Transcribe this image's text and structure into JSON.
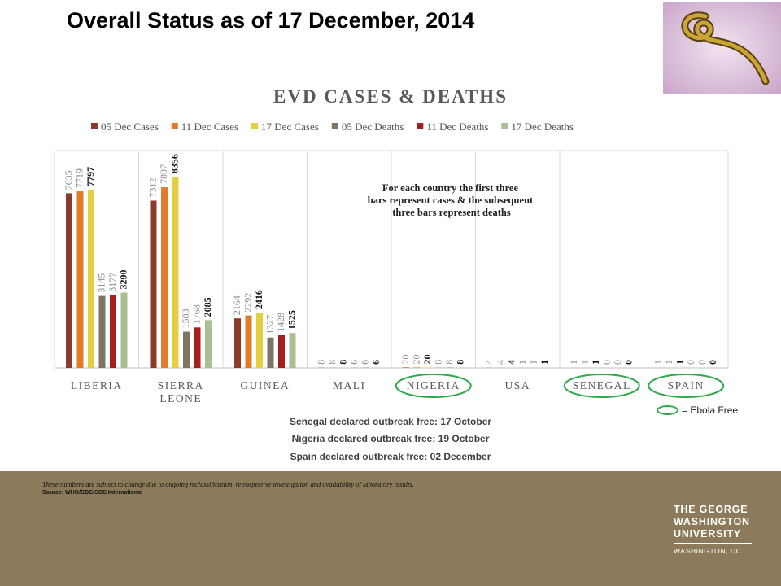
{
  "slide": {
    "title": "Overall Status as of 17 December, 2014"
  },
  "virus_image": {
    "colors": {
      "background": "#e6cfe6",
      "virus": "#c9a436",
      "outline": "#5a3f14"
    }
  },
  "chart_data": {
    "type": "bar",
    "title": "EVD CASES & DEATHS",
    "categories": [
      "LIBERIA",
      "SIERRA LEONE",
      "GUINEA",
      "MALI",
      "NIGERIA",
      "USA",
      "SENEGAL",
      "SPAIN"
    ],
    "category_labels": [
      [
        "LIBERIA"
      ],
      [
        "SIERRA",
        "LEONE"
      ],
      [
        "GUINEA"
      ],
      [
        "MALI"
      ],
      [
        "NIGERIA"
      ],
      [
        "USA"
      ],
      [
        "SENEGAL"
      ],
      [
        "SPAIN"
      ]
    ],
    "series": [
      {
        "name": "05 Dec Cases",
        "color": "#8b3a2b",
        "values": [
          7635,
          7312,
          2164,
          8,
          20,
          4,
          1,
          1
        ]
      },
      {
        "name": "11 Dec Cases",
        "color": "#e07b2a",
        "values": [
          7719,
          7897,
          2292,
          8,
          20,
          4,
          1,
          1
        ]
      },
      {
        "name": "17 Dec Cases",
        "color": "#e3cf3f",
        "values": [
          7797,
          8356,
          2416,
          8,
          20,
          4,
          1,
          1
        ]
      },
      {
        "name": "05 Dec Deaths",
        "color": "#7d7466",
        "values": [
          3145,
          1583,
          1327,
          6,
          8,
          1,
          0,
          0
        ]
      },
      {
        "name": "11 Dec Deaths",
        "color": "#a3201c",
        "values": [
          3177,
          1768,
          1428,
          6,
          8,
          1,
          0,
          0
        ]
      },
      {
        "name": "17 Dec Deaths",
        "color": "#a9bf92",
        "values": [
          3290,
          2085,
          1525,
          6,
          8,
          1,
          0,
          0
        ]
      }
    ],
    "ylim": [
      0,
      9500
    ],
    "grid": false,
    "legend": "top",
    "annotation": [
      "For each country the first three",
      "bars represent cases & the subsequent",
      "three bars represent deaths"
    ],
    "ebola_free_countries": [
      "NIGERIA",
      "SENEGAL",
      "SPAIN"
    ]
  },
  "legend_note": {
    "label": "= Ebola Free"
  },
  "notes": [
    "Senegal declared outbreak free: 17 October",
    "Nigeria declared outbreak free: 19 October",
    "Spain declared outbreak free: 02 December"
  ],
  "footnote": {
    "text": "These numbers are subject to change due to ongoing reclassification, retrospective investigation and availability of laboratory results.",
    "source": "Source: WHO/CDC/SOS International"
  },
  "institution": {
    "line1": "THE GEORGE",
    "line2": "WASHINGTON",
    "line3": "UNIVERSITY",
    "city": "WASHINGTON, DC"
  }
}
